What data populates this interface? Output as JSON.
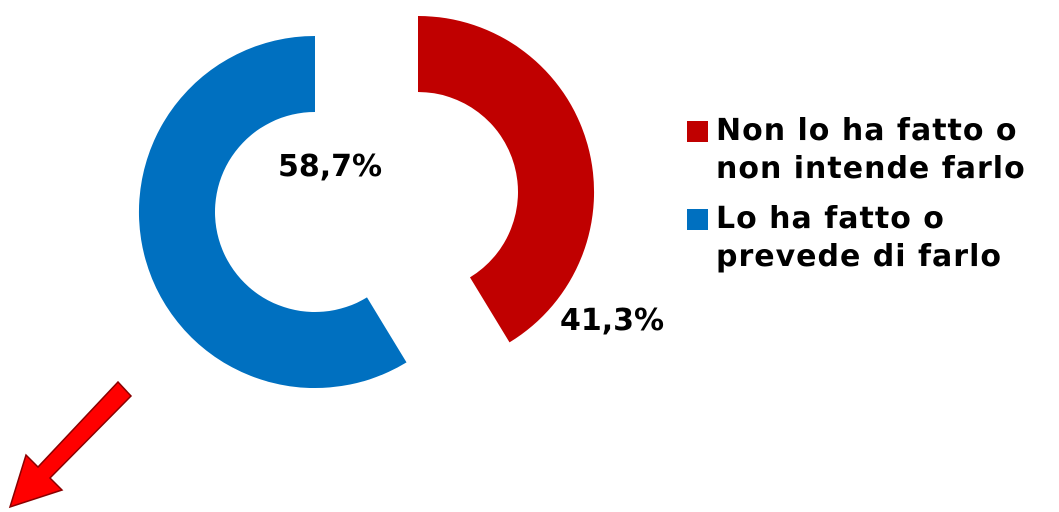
{
  "chart_data": {
    "type": "pie",
    "categories": [
      "Non lo ha fatto o non intende farlo",
      "Lo ha fatto o prevede di farlo"
    ],
    "values": [
      41.3,
      58.7
    ],
    "labels": [
      "41,3%",
      "58,7%"
    ],
    "colors": [
      "#c00000",
      "#0070c0"
    ],
    "legend_position": "right"
  },
  "legend": [
    {
      "line1": "Non lo ha fatto o",
      "line2": "non intende farlo",
      "color": "#c00000"
    },
    {
      "line1": "Lo ha fatto o",
      "line2": "prevede di farlo",
      "color": "#0070c0"
    }
  ],
  "arrow": {
    "color": "#ff0000"
  }
}
